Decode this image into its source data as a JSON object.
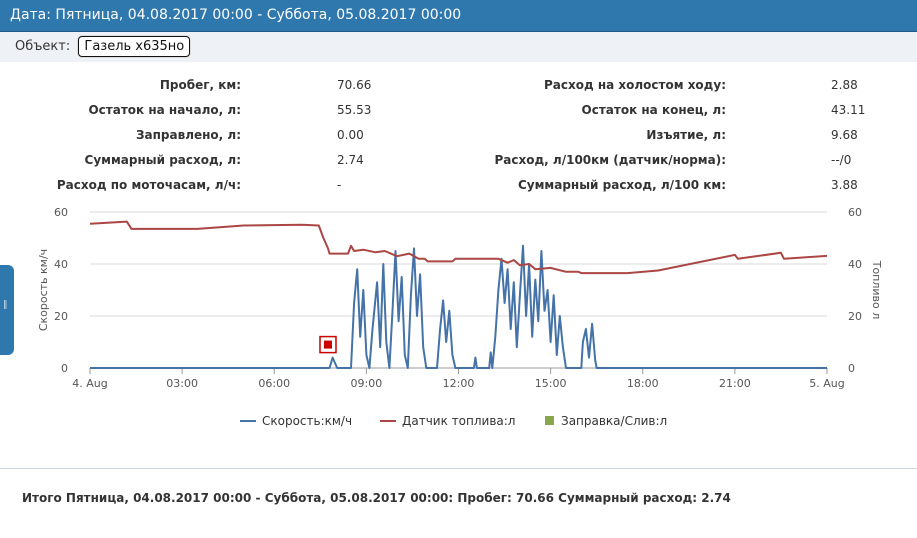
{
  "header": {
    "title": "Дата: Пятница, 04.08.2017 00:00 - Суббота, 05.08.2017 00:00"
  },
  "object": {
    "label": "Объект:",
    "value": "Газель х635но"
  },
  "stats": [
    {
      "label": "Пробег, км:",
      "value": "70.66",
      "label2": "Расход на холостом ходу:",
      "value2": "2.88"
    },
    {
      "label": "Остаток на начало, л:",
      "value": "55.53",
      "label2": "Остаток на конец, л:",
      "value2": "43.11"
    },
    {
      "label": "Заправлено, л:",
      "value": "0.00",
      "label2": "Изъятие, л:",
      "value2": "9.68"
    },
    {
      "label": "Суммарный расход, л:",
      "value": "2.74",
      "label2": "Расход, л/100км (датчик/норма):",
      "value2": "--/0"
    },
    {
      "label": "Расход по моточасам, л/ч:",
      "value": "-",
      "label2": "Суммарный расход, л/100 км:",
      "value2": "3.88"
    }
  ],
  "chart_data": {
    "type": "line",
    "ylabel": "Скорость км/ч",
    "y2label": "Топливо л",
    "ylim": [
      0,
      60
    ],
    "y2lim": [
      0,
      60
    ],
    "yticks": [
      0,
      20,
      40,
      60
    ],
    "x_unit": "hours since 4. Aug 00:00",
    "xlim": [
      0,
      24
    ],
    "xticks": [
      {
        "x": 0,
        "label": "4. Aug"
      },
      {
        "x": 3,
        "label": "03:00"
      },
      {
        "x": 6,
        "label": "06:00"
      },
      {
        "x": 9,
        "label": "09:00"
      },
      {
        "x": 12,
        "label": "12:00"
      },
      {
        "x": 15,
        "label": "15:00"
      },
      {
        "x": 18,
        "label": "18:00"
      },
      {
        "x": 21,
        "label": "21:00"
      },
      {
        "x": 24,
        "label": "5. Aug"
      }
    ],
    "grid": true,
    "legend_position": "bottom",
    "series": [
      {
        "name": "Скорость:км/ч",
        "color": "#4572a7",
        "axis": "left",
        "points": [
          [
            0,
            0
          ],
          [
            7.8,
            0
          ],
          [
            7.9,
            4
          ],
          [
            8.05,
            0
          ],
          [
            8.5,
            0
          ],
          [
            8.6,
            25
          ],
          [
            8.7,
            38
          ],
          [
            8.8,
            12
          ],
          [
            8.9,
            30
          ],
          [
            9.0,
            5
          ],
          [
            9.1,
            0
          ],
          [
            9.2,
            15
          ],
          [
            9.35,
            33
          ],
          [
            9.45,
            8
          ],
          [
            9.55,
            40
          ],
          [
            9.65,
            10
          ],
          [
            9.75,
            0
          ],
          [
            9.85,
            22
          ],
          [
            9.95,
            45
          ],
          [
            10.05,
            18
          ],
          [
            10.15,
            35
          ],
          [
            10.25,
            5
          ],
          [
            10.35,
            0
          ],
          [
            10.45,
            28
          ],
          [
            10.55,
            46
          ],
          [
            10.65,
            20
          ],
          [
            10.75,
            36
          ],
          [
            10.85,
            8
          ],
          [
            10.95,
            0
          ],
          [
            11.3,
            0
          ],
          [
            11.4,
            15
          ],
          [
            11.5,
            26
          ],
          [
            11.6,
            10
          ],
          [
            11.7,
            22
          ],
          [
            11.8,
            5
          ],
          [
            11.9,
            0
          ],
          [
            12.5,
            0
          ],
          [
            12.55,
            4
          ],
          [
            12.6,
            0
          ],
          [
            13.0,
            0
          ],
          [
            13.05,
            6
          ],
          [
            13.1,
            0
          ],
          [
            13.2,
            12
          ],
          [
            13.3,
            30
          ],
          [
            13.4,
            42
          ],
          [
            13.5,
            25
          ],
          [
            13.6,
            38
          ],
          [
            13.7,
            15
          ],
          [
            13.8,
            33
          ],
          [
            13.9,
            8
          ],
          [
            14.0,
            28
          ],
          [
            14.1,
            47
          ],
          [
            14.2,
            20
          ],
          [
            14.3,
            40
          ],
          [
            14.4,
            12
          ],
          [
            14.5,
            34
          ],
          [
            14.6,
            18
          ],
          [
            14.7,
            45
          ],
          [
            14.8,
            22
          ],
          [
            14.9,
            30
          ],
          [
            15.0,
            10
          ],
          [
            15.1,
            28
          ],
          [
            15.2,
            5
          ],
          [
            15.3,
            20
          ],
          [
            15.4,
            8
          ],
          [
            15.5,
            0
          ],
          [
            16.0,
            0
          ],
          [
            16.05,
            10
          ],
          [
            16.15,
            15
          ],
          [
            16.25,
            4
          ],
          [
            16.35,
            17
          ],
          [
            16.45,
            3
          ],
          [
            16.5,
            0
          ],
          [
            24,
            0
          ]
        ]
      },
      {
        "name": "Датчик топлива:л",
        "color": "#aa4643",
        "axis": "right",
        "points": [
          [
            0,
            55.5
          ],
          [
            1.2,
            56.3
          ],
          [
            1.35,
            53.5
          ],
          [
            3.5,
            53.5
          ],
          [
            5.0,
            54.8
          ],
          [
            6.9,
            55.1
          ],
          [
            7.45,
            54.8
          ],
          [
            7.6,
            50
          ],
          [
            7.75,
            46
          ],
          [
            7.8,
            44
          ],
          [
            8.4,
            44
          ],
          [
            8.5,
            47
          ],
          [
            8.6,
            45
          ],
          [
            8.9,
            45.5
          ],
          [
            9.3,
            44.5
          ],
          [
            9.6,
            45
          ],
          [
            10.0,
            43
          ],
          [
            10.4,
            44
          ],
          [
            10.7,
            42
          ],
          [
            10.9,
            42
          ],
          [
            11.0,
            41
          ],
          [
            11.8,
            41
          ],
          [
            11.9,
            42
          ],
          [
            13.3,
            42
          ],
          [
            13.6,
            40.5
          ],
          [
            13.8,
            41.5
          ],
          [
            14.0,
            39.5
          ],
          [
            14.3,
            40
          ],
          [
            14.5,
            38
          ],
          [
            15.0,
            38.5
          ],
          [
            15.5,
            37
          ],
          [
            15.9,
            37
          ],
          [
            16.0,
            36.5
          ],
          [
            17.5,
            36.5
          ],
          [
            18.5,
            37.5
          ],
          [
            21.0,
            43.5
          ],
          [
            21.1,
            42
          ],
          [
            22.5,
            44.3
          ],
          [
            22.6,
            42
          ],
          [
            24.0,
            43.1
          ]
        ]
      },
      {
        "name": "Заправка/Слив:л",
        "color": "#89a54e",
        "axis": "right",
        "type": "marker",
        "points": []
      }
    ],
    "annotations": [
      {
        "type": "drain-icon",
        "x": 7.75,
        "y": 9,
        "color": "#cc0000"
      }
    ]
  },
  "summary": {
    "text": "Итого Пятница, 04.08.2017 00:00 - Суббота, 05.08.2017 00:00: Пробег: 70.66 Суммарный расход: 2.74"
  }
}
